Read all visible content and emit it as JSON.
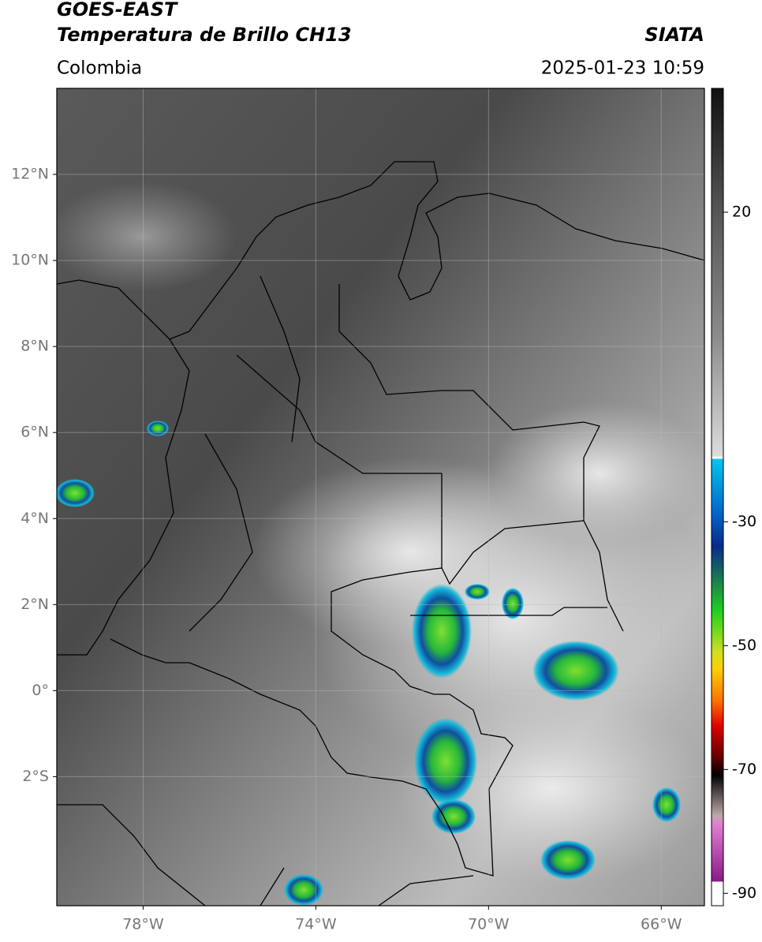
{
  "header": {
    "title_line1": "GOES-EAST",
    "title_line2": "Temperatura de Brillo CH13",
    "region": "Colombia",
    "source": "SIATA",
    "datetime": "2025-01-23 10:59"
  },
  "map": {
    "xlim": [
      -80,
      -65
    ],
    "ylim": [
      -5,
      14
    ],
    "xticks": [
      {
        "value": -78,
        "label": "78°W"
      },
      {
        "value": -74,
        "label": "74°W"
      },
      {
        "value": -70,
        "label": "70°W"
      },
      {
        "value": -66,
        "label": "66°W"
      }
    ],
    "yticks": [
      {
        "value": 12,
        "label": "12°N"
      },
      {
        "value": 10,
        "label": "10°N"
      },
      {
        "value": 8,
        "label": "8°N"
      },
      {
        "value": 6,
        "label": "6°N"
      },
      {
        "value": 4,
        "label": "4°N"
      },
      {
        "value": 2,
        "label": "2°N"
      },
      {
        "value": 0,
        "label": "0°"
      },
      {
        "value": -2,
        "label": "2°S"
      }
    ],
    "grid": true
  },
  "colorbar": {
    "lim": [
      -92,
      40
    ],
    "ticks": [
      20,
      -30,
      -50,
      -70,
      -90
    ]
  }
}
